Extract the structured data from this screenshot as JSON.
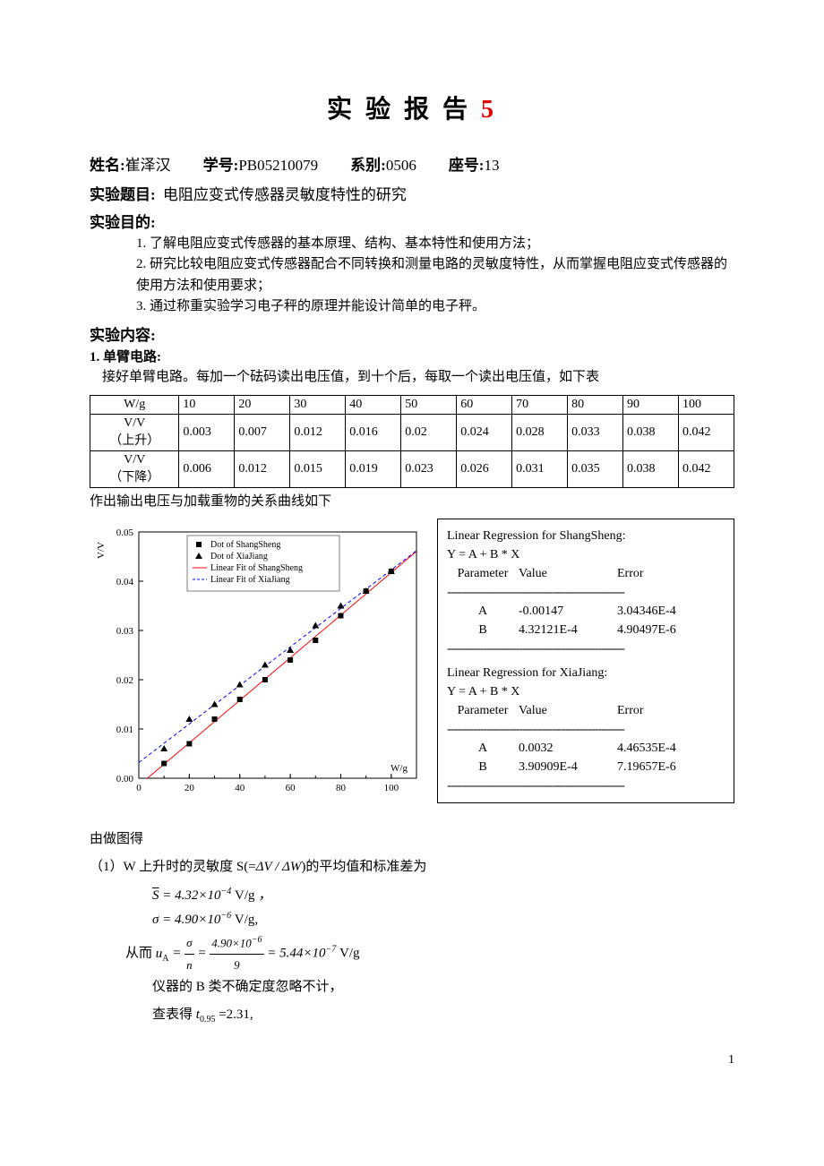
{
  "title_text": "实 验 报 告 ",
  "title_num": "5",
  "info": {
    "name_lbl": "姓名:",
    "name": "崔泽汉",
    "id_lbl": "学号:",
    "id": "PB05210079",
    "dept_lbl": "系别:",
    "dept": "0506",
    "seat_lbl": "座号:",
    "seat": "13"
  },
  "topic_lbl": "实验题目:",
  "topic": "电阻应变式传感器灵敏度特性的研究",
  "goal_lbl": "实验目的:",
  "goals": [
    "1. 了解电阻应变式传感器的基本原理、结构、基本特性和使用方法；",
    "2. 研究比较电阻应变式传感器配合不同转换和测量电路的灵敏度特性，从而掌握电阻应变式传感器的使用方法和使用要求；",
    "3. 通过称重实验学习电子秤的原理并能设计简单的电子秤。"
  ],
  "content_lbl": "实验内容:",
  "sub1": "1.  单臂电路:",
  "sub1_text": "接好单臂电路。每加一个砝码读出电压值，到十个后，每取一个读出电压值，如下表",
  "table": {
    "headers": [
      "W/g",
      "10",
      "20",
      "30",
      "40",
      "50",
      "60",
      "70",
      "80",
      "90",
      "100"
    ],
    "row1_lbl": "V/V\n（上升）",
    "row1": [
      "0.003",
      "0.007",
      "0.012",
      "0.016",
      "0.02",
      "0.024",
      "0.028",
      "0.033",
      "0.038",
      "0.042"
    ],
    "row2_lbl": "V/V\n（下降）",
    "row2": [
      "0.006",
      "0.012",
      "0.015",
      "0.019",
      "0.023",
      "0.026",
      "0.031",
      "0.035",
      "0.038",
      "0.042"
    ]
  },
  "after_table": "作出输出电压与加载重物的关系曲线如下",
  "chart": {
    "type": "scatter+line",
    "xlabel": "W/g",
    "ylabel": "V/V",
    "xlim": [
      0,
      110
    ],
    "xtick_step": 20,
    "ylim": [
      0,
      0.05
    ],
    "ytick_step": 0.01,
    "background": "#ffffff",
    "axis_color": "#000000",
    "series": [
      {
        "name": "Dot of ShangSheng",
        "marker": "square",
        "color": "#000000",
        "x": [
          10,
          20,
          30,
          40,
          50,
          60,
          70,
          80,
          90,
          100
        ],
        "y": [
          0.003,
          0.007,
          0.012,
          0.016,
          0.02,
          0.024,
          0.028,
          0.033,
          0.038,
          0.042
        ]
      },
      {
        "name": "Dot of XiaJiang",
        "marker": "triangle",
        "color": "#000000",
        "x": [
          10,
          20,
          30,
          40,
          50,
          60,
          70,
          80,
          90,
          100
        ],
        "y": [
          0.006,
          0.012,
          0.015,
          0.019,
          0.023,
          0.026,
          0.031,
          0.035,
          0.038,
          0.042
        ]
      }
    ],
    "fits": [
      {
        "name": "Linear Fit of ShangSheng",
        "color": "#ff0000",
        "dash": "none",
        "A": -0.00147,
        "B": 0.000432121
      },
      {
        "name": "Linear Fit of XiaJiang",
        "color": "#0000ff",
        "dash": "4,3",
        "A": 0.0032,
        "B": 0.000390909
      }
    ],
    "legend_items": [
      "Dot of ShangSheng",
      "Dot of XiaJiang",
      "Linear Fit of ShangSheng",
      "Linear Fit of XiaJiang"
    ]
  },
  "regression": {
    "block1_title": "Linear Regression for ShangSheng:",
    "eq": "Y = A + B * X",
    "hdr_param": "Parameter",
    "hdr_val": "Value",
    "hdr_err": "Error",
    "b1_A_val": "-0.00147",
    "b1_A_err": "3.04346E-4",
    "b1_B_val": "4.32121E-4",
    "b1_B_err": "4.90497E-6",
    "block2_title": "Linear Regression for XiaJiang:",
    "b2_A_val": "0.0032",
    "b2_A_err": "4.46535E-4",
    "b2_B_val": "3.90909E-4",
    "b2_B_err": "7.19657E-6"
  },
  "calc": {
    "lead": "由做图得",
    "line1a": "（1）W 上升时的灵敏度 S(=",
    "line1b": "ΔV / ΔW",
    "line1c": ")的平均值和标准差为",
    "sbar": "S̄ = 4.32×10⁻⁴ V/g ，",
    "sigma": "σ = 4.90×10⁻⁶ V/g,",
    "ua_pre": "从而 ",
    "ua_lhs": "u_A = ",
    "ua_num": "4.90×10⁻⁶",
    "ua_den": "9",
    "ua_rhs": " = 5.44×10⁻⁷ V/g",
    "bclass": "仪器的 B 类不确定度忽略不计，",
    "tval": "查表得 t₀.₉₅ =2.31,"
  },
  "pagenum": "1"
}
